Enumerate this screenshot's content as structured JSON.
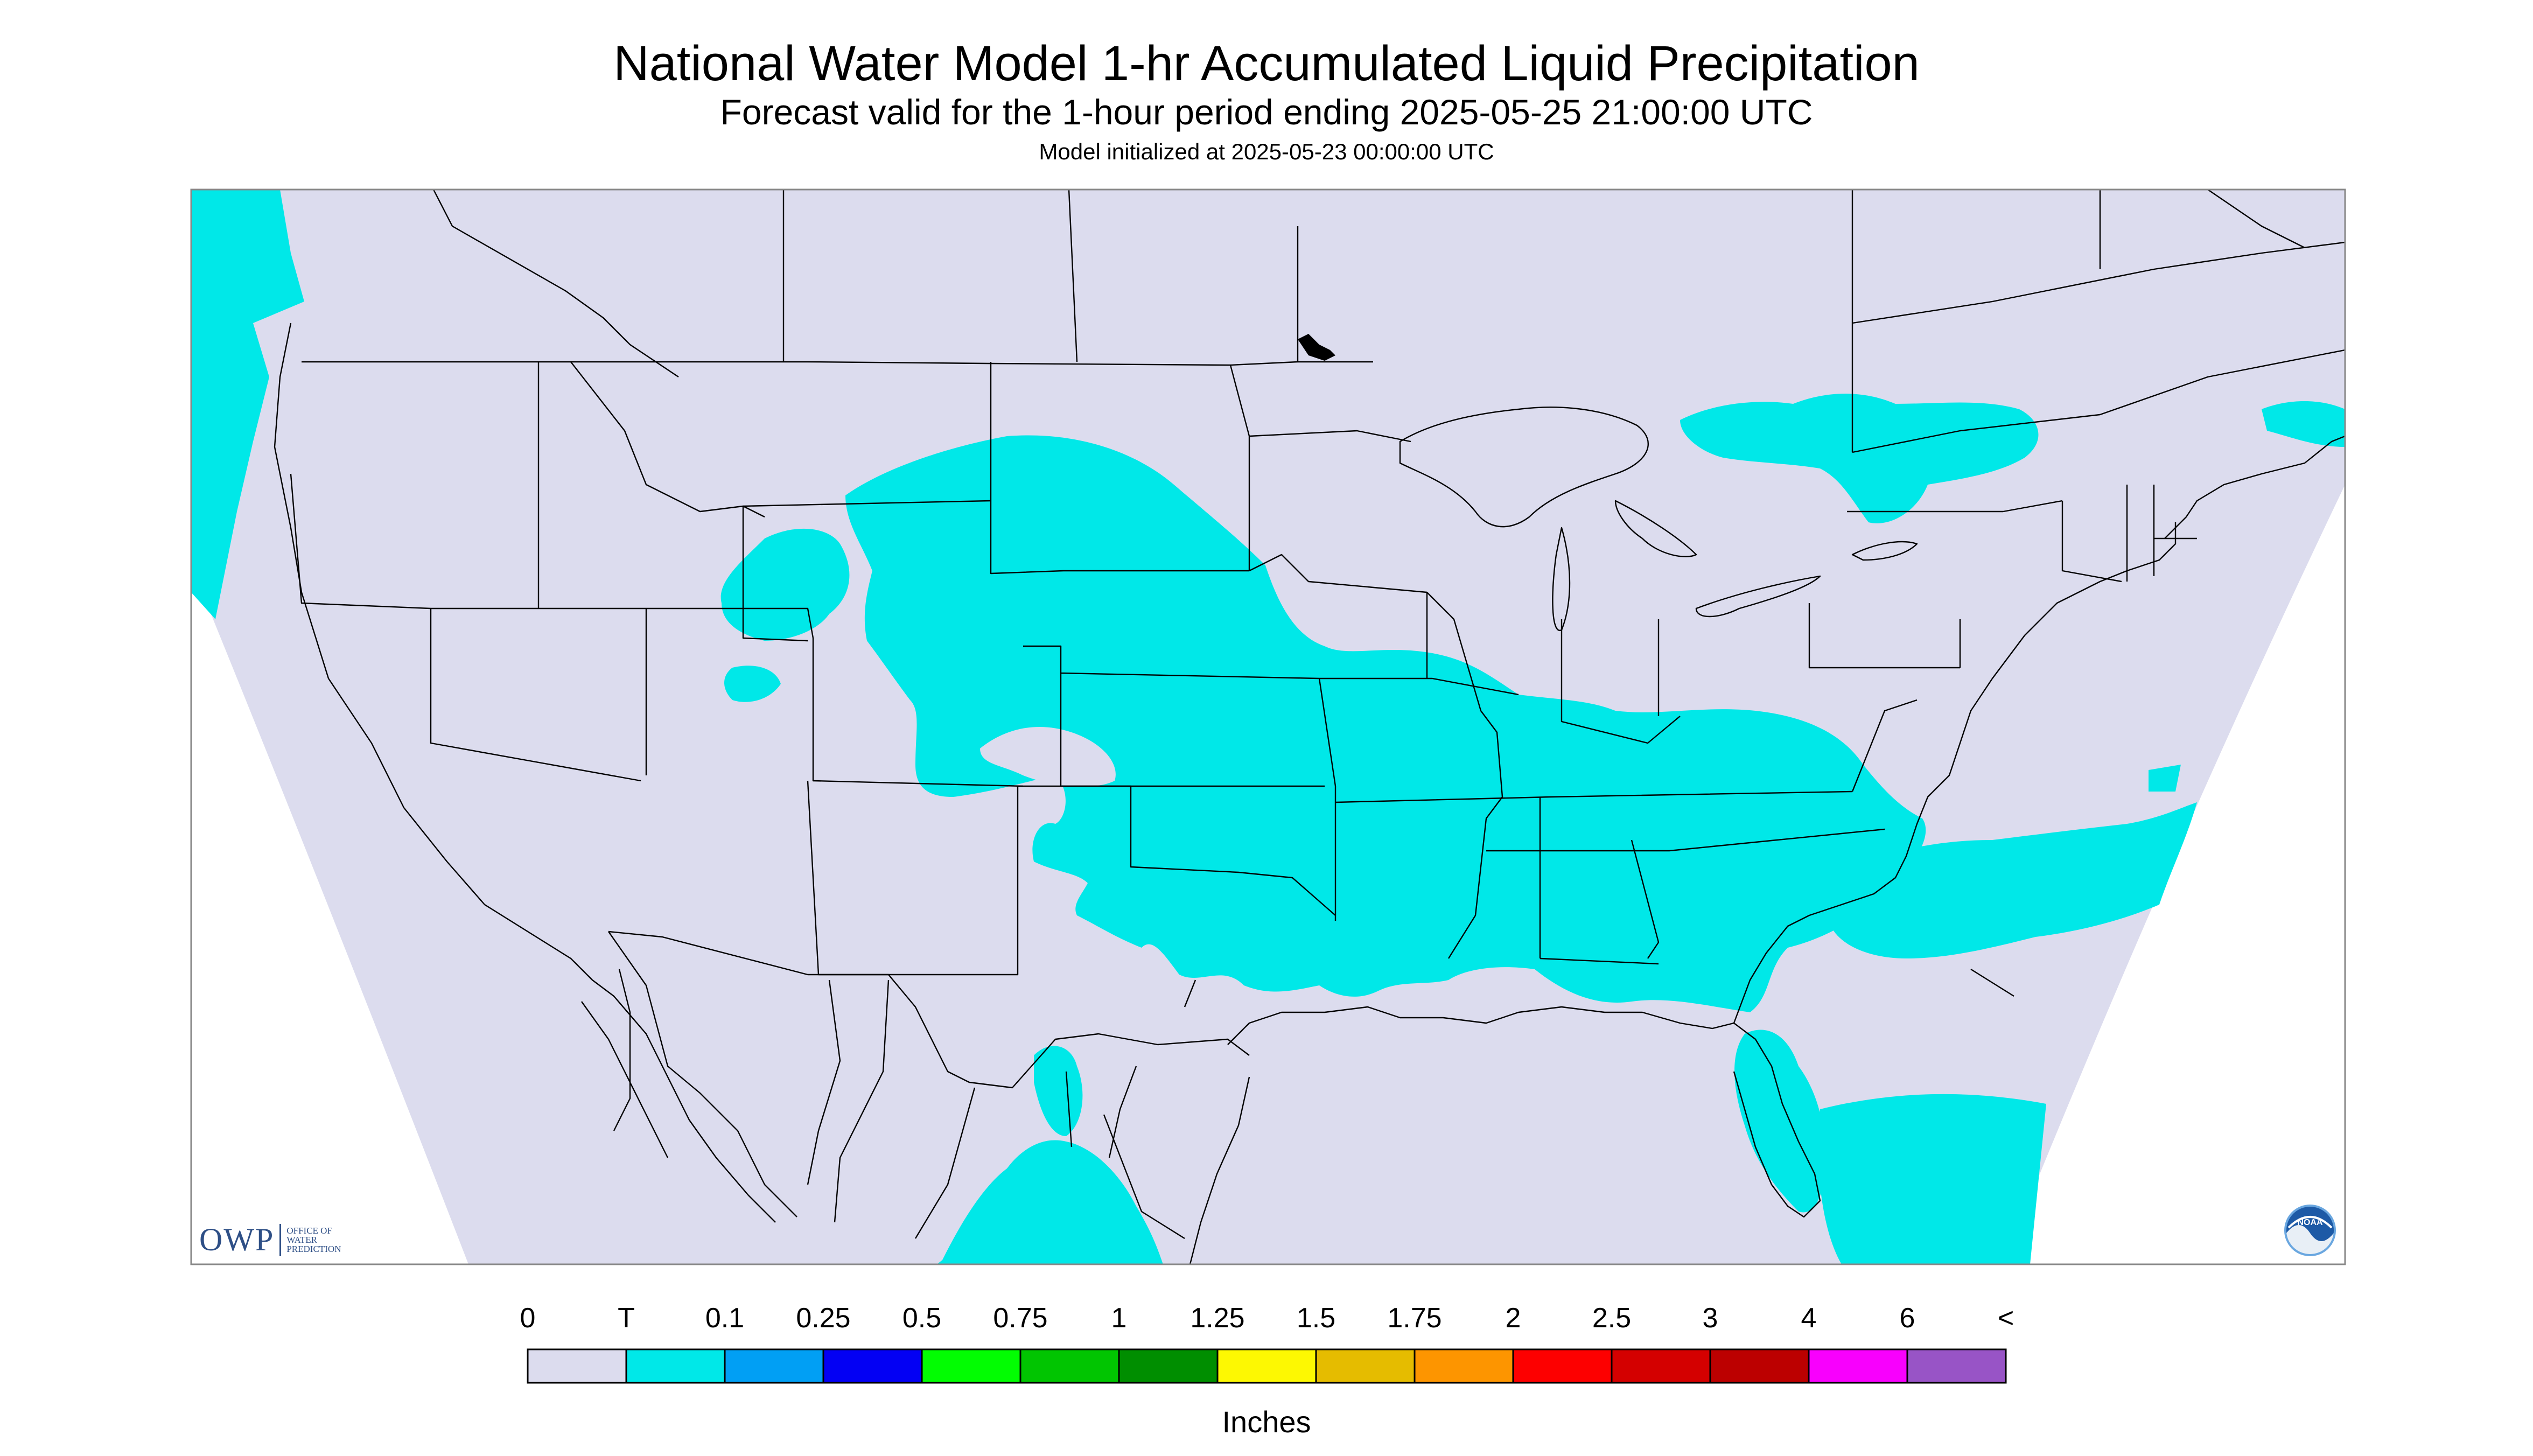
{
  "header": {
    "title": "National Water Model 1-hr Accumulated Liquid Precipitation",
    "subtitle": "Forecast valid for the 1-hour period ending 2025-05-25 21:00:00 UTC",
    "model_init": "Model initialized at 2025-05-23 00:00:00 UTC"
  },
  "legend": {
    "units": "Inches",
    "labels": [
      "0",
      "T",
      "0.1",
      "0.25",
      "0.5",
      "0.75",
      "1",
      "1.25",
      "1.5",
      "1.75",
      "2",
      "2.5",
      "3",
      "4",
      "6",
      "<"
    ],
    "colors": [
      "#dcdcee",
      "#00e8e8",
      "#019ff4",
      "#0300f4",
      "#02fd02",
      "#01c501",
      "#008e00",
      "#fdf802",
      "#e5bc00",
      "#fd9500",
      "#fd0000",
      "#d40000",
      "#bc0000",
      "#f800fd",
      "#9854c6"
    ]
  },
  "map": {
    "background_color": "#dcdcee",
    "precip_color": "#00e8e8",
    "boundary_color": "#000000"
  },
  "logos": {
    "owp_mark": "OWP",
    "owp_text": "OFFICE OF WATER PREDICTION",
    "noaa_text": "NOAA",
    "noaa_icon": "noaa-logo-icon"
  }
}
